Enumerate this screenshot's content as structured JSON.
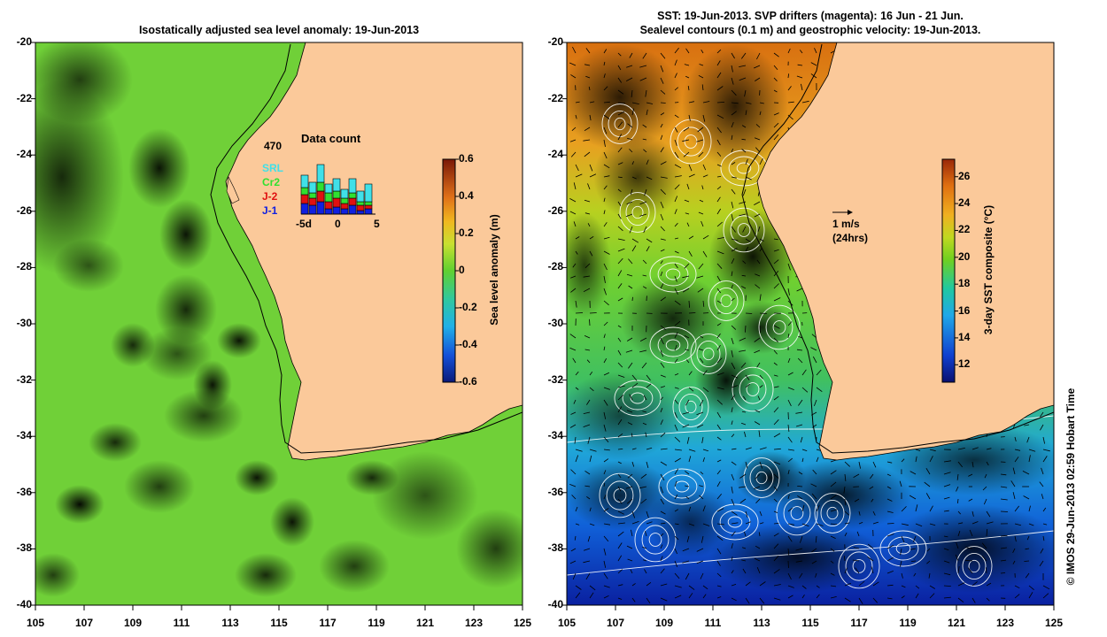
{
  "left_panel": {
    "title": "Isostatically adjusted sea level anomaly: 19-Jun-2013",
    "y_ticks": [
      "-20",
      "-22",
      "-24",
      "-26",
      "-28",
      "-30",
      "-32",
      "-34",
      "-36",
      "-38",
      "-40"
    ],
    "x_ticks": [
      "105",
      "107",
      "109",
      "111",
      "113",
      "115",
      "117",
      "119",
      "121",
      "123",
      "125"
    ],
    "colorbar": {
      "label": "Sea level anomaly (m)",
      "ticks": [
        "0.6",
        "0.4",
        "0.2",
        "0",
        "-0.2",
        "-0.4",
        "-0.6"
      ],
      "range": [
        -0.6,
        0.6
      ]
    },
    "inset": {
      "title": "Data count",
      "count": "470",
      "x_ticks": [
        "-5d",
        "0",
        "5"
      ],
      "legend": [
        {
          "name": "SRL",
          "color": "#40e0e8"
        },
        {
          "name": "Cr2",
          "color": "#30e030"
        },
        {
          "name": "J-2",
          "color": "#e01010"
        },
        {
          "name": "J-1",
          "color": "#1020e0"
        }
      ]
    }
  },
  "right_panel": {
    "title_line1": "SST: 19-Jun-2013. SVP drifters (magenta): 16 Jun - 21 Jun.",
    "title_line2": "Sealevel contours (0.1 m) and geostrophic velocity: 19-Jun-2013.",
    "y_ticks": [
      "-20",
      "-22",
      "-24",
      "-26",
      "-28",
      "-30",
      "-32",
      "-34",
      "-36",
      "-38",
      "-40"
    ],
    "x_ticks": [
      "105",
      "107",
      "109",
      "111",
      "113",
      "115",
      "117",
      "119",
      "121",
      "123",
      "125"
    ],
    "scale_vector": {
      "label": "1 m/s",
      "sublabel": "(24hrs)"
    },
    "colorbar": {
      "label": "3-day SST composite (°C)",
      "ticks": [
        "26",
        "24",
        "22",
        "20",
        "18",
        "16",
        "14",
        "12"
      ],
      "range": [
        10.7,
        27.3
      ]
    }
  },
  "credit": "© IMOS 29-Jun-2013 02:59 Hobart Time",
  "colors": {
    "land": "#fbc99a",
    "sla_low": "#0a2a8c",
    "sla_high": "#8a1a08",
    "sst_low": "#0a1a90",
    "sst_high": "#c85010"
  }
}
